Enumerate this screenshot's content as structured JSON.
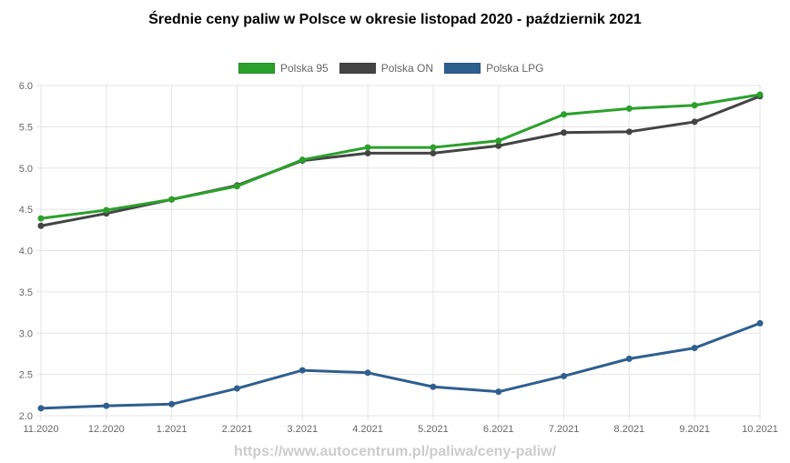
{
  "chart_data": {
    "type": "line",
    "title": "Średnie ceny paliw w Polsce w okresie listopad 2020 - październik 2021",
    "xlabel": "",
    "ylabel": "",
    "categories": [
      "11.2020",
      "12.2020",
      "1.2021",
      "2.2021",
      "3.2021",
      "4.2021",
      "5.2021",
      "6.2021",
      "7.2021",
      "8.2021",
      "9.2021",
      "10.2021"
    ],
    "ylim": [
      2.0,
      6.0
    ],
    "yticks": [
      "2.0",
      "2.5",
      "3.0",
      "3.5",
      "4.0",
      "4.5",
      "5.0",
      "5.5",
      "6.0"
    ],
    "grid": true,
    "legend_position": "top",
    "series": [
      {
        "name": "Polska 95",
        "color": "#2ca02c",
        "values": [
          4.39,
          4.49,
          4.62,
          4.78,
          5.1,
          5.25,
          5.25,
          5.33,
          5.65,
          5.72,
          5.76,
          5.89
        ]
      },
      {
        "name": "Polska ON",
        "color": "#444444",
        "values": [
          4.3,
          4.45,
          4.62,
          4.79,
          5.09,
          5.18,
          5.18,
          5.27,
          5.43,
          5.44,
          5.56,
          5.87
        ]
      },
      {
        "name": "Polska LPG",
        "color": "#2f5f8f",
        "values": [
          2.09,
          2.12,
          2.14,
          2.33,
          2.55,
          2.52,
          2.35,
          2.29,
          2.48,
          2.69,
          2.82,
          3.12
        ]
      }
    ]
  },
  "footer": "https://www.autocentrum.pl/paliwa/ceny-paliw/"
}
